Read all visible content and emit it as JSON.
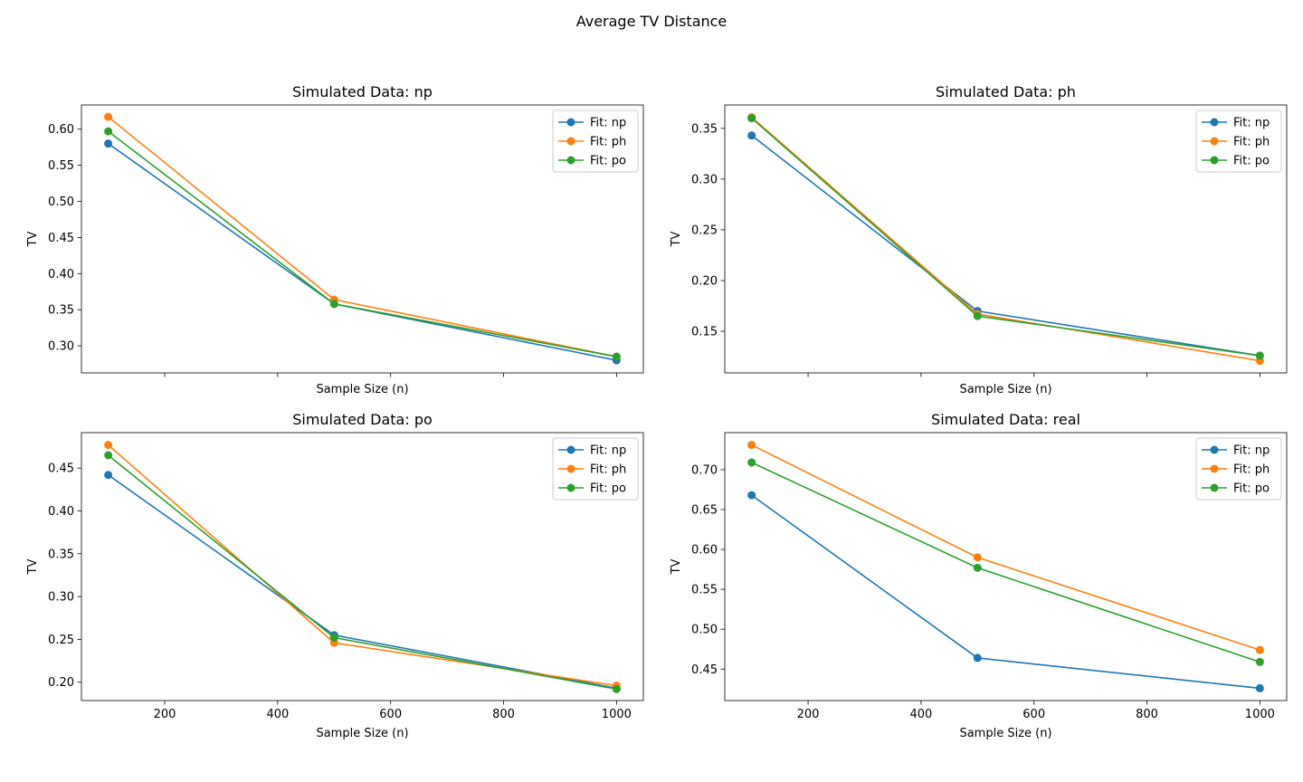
{
  "suptitle": "Average TV Distance",
  "colors": {
    "np": "#1f77b4",
    "ph": "#ff7f0e",
    "po": "#2ca02c"
  },
  "chart_data": [
    {
      "type": "line",
      "title": "Simulated Data: np",
      "xlabel": "Sample Size (n)",
      "ylabel": "TV",
      "x": [
        100,
        500,
        1000
      ],
      "xlim": [
        52.5,
        1047.5
      ],
      "ylim": [
        0.2625,
        0.6335
      ],
      "xticks": [
        200,
        400,
        600,
        800,
        1000
      ],
      "xticklabels_visible": false,
      "yticks": [
        "0.30",
        "0.35",
        "0.40",
        "0.45",
        "0.50",
        "0.55",
        "0.60"
      ],
      "legend": "top-right",
      "series": [
        {
          "name": "Fit: np",
          "values": [
            0.58,
            0.358,
            0.28
          ]
        },
        {
          "name": "Fit: ph",
          "values": [
            0.617,
            0.364,
            0.285
          ]
        },
        {
          "name": "Fit: po",
          "values": [
            0.597,
            0.358,
            0.285
          ]
        }
      ]
    },
    {
      "type": "line",
      "title": "Simulated Data: ph",
      "xlabel": "Sample Size (n)",
      "ylabel": "TV",
      "x": [
        100,
        500,
        1000
      ],
      "xlim": [
        52.5,
        1047.5
      ],
      "ylim": [
        0.109,
        0.373
      ],
      "xticks": [
        200,
        400,
        600,
        800,
        1000
      ],
      "xticklabels_visible": false,
      "yticks": [
        "0.15",
        "0.20",
        "0.25",
        "0.30",
        "0.35"
      ],
      "legend": "top-right",
      "series": [
        {
          "name": "Fit: np",
          "values": [
            0.343,
            0.17,
            0.126
          ]
        },
        {
          "name": "Fit: ph",
          "values": [
            0.361,
            0.167,
            0.121
          ]
        },
        {
          "name": "Fit: po",
          "values": [
            0.36,
            0.165,
            0.126
          ]
        }
      ]
    },
    {
      "type": "line",
      "title": "Simulated Data: po",
      "xlabel": "Sample Size (n)",
      "ylabel": "TV",
      "x": [
        100,
        500,
        1000
      ],
      "xlim": [
        52.5,
        1047.5
      ],
      "ylim": [
        0.1786,
        0.4914
      ],
      "xticks": [
        200,
        400,
        600,
        800,
        1000
      ],
      "xticklabels_visible": true,
      "yticks": [
        "0.20",
        "0.25",
        "0.30",
        "0.35",
        "0.40",
        "0.45"
      ],
      "legend": "top-right",
      "series": [
        {
          "name": "Fit: np",
          "values": [
            0.442,
            0.255,
            0.193
          ]
        },
        {
          "name": "Fit: ph",
          "values": [
            0.477,
            0.246,
            0.196
          ]
        },
        {
          "name": "Fit: po",
          "values": [
            0.465,
            0.252,
            0.192
          ]
        }
      ]
    },
    {
      "type": "line",
      "title": "Simulated Data: real",
      "xlabel": "Sample Size (n)",
      "ylabel": "TV",
      "x": [
        100,
        500,
        1000
      ],
      "xlim": [
        52.5,
        1047.5
      ],
      "ylim": [
        0.4106,
        0.7464
      ],
      "xticks": [
        200,
        400,
        600,
        800,
        1000
      ],
      "xticklabels_visible": true,
      "yticks": [
        "0.45",
        "0.50",
        "0.55",
        "0.60",
        "0.65",
        "0.70"
      ],
      "legend": "top-right",
      "series": [
        {
          "name": "Fit: np",
          "values": [
            0.668,
            0.464,
            0.426
          ]
        },
        {
          "name": "Fit: ph",
          "values": [
            0.731,
            0.59,
            0.474
          ]
        },
        {
          "name": "Fit: po",
          "values": [
            0.709,
            0.577,
            0.459
          ]
        }
      ]
    }
  ]
}
